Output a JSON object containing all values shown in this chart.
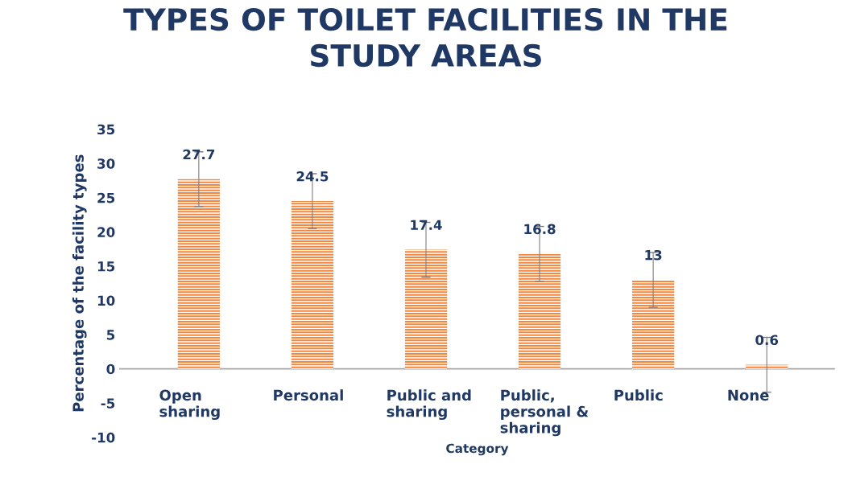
{
  "chart_data": {
    "type": "bar",
    "title": "TYPES OF TOILET FACILITIES IN THE\nSTUDY AREAS",
    "xlabel": "Category",
    "ylabel": "Percentage of the facility types",
    "categories": [
      "Open\nsharing",
      "Personal",
      "Public and\nsharing",
      "Public,\npersonal &\nsharing",
      "Public",
      "None"
    ],
    "values": [
      27.7,
      24.5,
      17.4,
      16.8,
      13,
      0.6
    ],
    "errors": [
      4,
      4,
      4,
      4,
      4,
      4
    ],
    "color": "#f4873d",
    "ylim": [
      -10,
      35
    ],
    "yticks": [
      -10,
      -5,
      0,
      5,
      10,
      15,
      20,
      25,
      30,
      35
    ],
    "data_labels": true,
    "grid": false,
    "legend": false
  }
}
